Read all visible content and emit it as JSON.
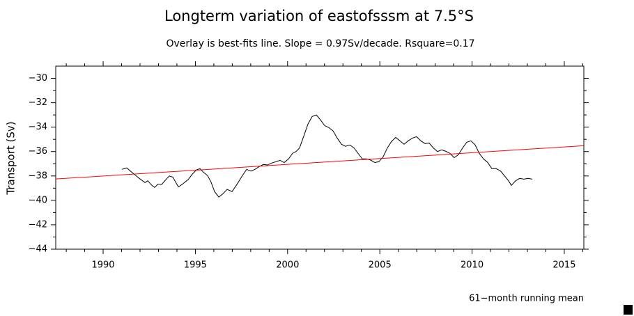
{
  "chart_data": {
    "type": "line",
    "title": "Longterm variation of eastofsssm at 7.5°S",
    "subtitle": "Overlay is best-fits line. Slope = 0.97Sv/decade. Rsquare=0.17",
    "y_label": "Transport (Sv)",
    "note": "61−month running mean",
    "xlim": [
      1987.43,
      2016.06
    ],
    "xticks": [
      1990,
      1995,
      2000,
      2005,
      2010,
      2015
    ],
    "ylim": [
      -44,
      -29
    ],
    "yticks": [
      {
        "value": -44,
        "label": "−44"
      },
      {
        "value": -42,
        "label": "−42"
      },
      {
        "value": -40,
        "label": "−40"
      },
      {
        "value": -38,
        "label": "−38"
      },
      {
        "value": -36,
        "label": "−36"
      },
      {
        "value": -34,
        "label": "−34"
      },
      {
        "value": -32,
        "label": "−32"
      },
      {
        "value": -30,
        "label": "−30"
      }
    ],
    "series": [
      {
        "color": "#000000",
        "x": [
          1991.02,
          1991.28,
          1991.59,
          1991.96,
          1992.27,
          1992.42,
          1992.64,
          1992.79,
          1992.98,
          1993.17,
          1993.4,
          1993.59,
          1993.78,
          1993.93,
          1994.08,
          1994.31,
          1994.61,
          1994.83,
          1995.06,
          1995.25,
          1995.44,
          1995.66,
          1995.85,
          1996.04,
          1996.27,
          1996.5,
          1996.72,
          1996.99,
          1997.25,
          1997.55,
          1997.78,
          1998.01,
          1998.23,
          1998.46,
          1998.69,
          1998.91,
          1999.14,
          1999.37,
          1999.59,
          1999.82,
          2000.05,
          2000.27,
          2000.46,
          2000.65,
          2000.88,
          2001.1,
          2001.33,
          2001.56,
          2001.78,
          2002.01,
          2002.24,
          2002.46,
          2002.69,
          2002.92,
          2003.14,
          2003.37,
          2003.6,
          2003.82,
          2004.05,
          2004.28,
          2004.5,
          2004.73,
          2004.95,
          2005.18,
          2005.41,
          2005.63,
          2005.86,
          2006.09,
          2006.31,
          2006.54,
          2006.77,
          2006.99,
          2007.22,
          2007.45,
          2007.67,
          2007.9,
          2008.13,
          2008.35,
          2008.58,
          2008.81,
          2009.03,
          2009.26,
          2009.49,
          2009.71,
          2009.94,
          2010.17,
          2010.39,
          2010.62,
          2010.85,
          2011.07,
          2011.3,
          2011.53,
          2011.75,
          2011.98,
          2012.13,
          2012.36,
          2012.58,
          2012.81,
          2013.04,
          2013.26
        ],
        "values": [
          -37.46,
          -37.34,
          -37.74,
          -38.2,
          -38.54,
          -38.4,
          -38.77,
          -38.94,
          -38.66,
          -38.7,
          -38.3,
          -38.0,
          -38.1,
          -38.5,
          -38.9,
          -38.66,
          -38.3,
          -37.86,
          -37.5,
          -37.4,
          -37.7,
          -37.97,
          -38.5,
          -39.28,
          -39.73,
          -39.45,
          -39.1,
          -39.28,
          -38.7,
          -37.97,
          -37.46,
          -37.6,
          -37.46,
          -37.23,
          -37.06,
          -37.1,
          -36.94,
          -36.83,
          -36.72,
          -36.9,
          -36.6,
          -36.15,
          -36.0,
          -35.7,
          -34.72,
          -33.76,
          -33.13,
          -33.0,
          -33.4,
          -33.87,
          -34.04,
          -34.3,
          -34.9,
          -35.4,
          -35.57,
          -35.46,
          -35.7,
          -36.15,
          -36.6,
          -36.6,
          -36.7,
          -36.9,
          -36.83,
          -36.43,
          -35.7,
          -35.18,
          -34.84,
          -35.12,
          -35.4,
          -35.12,
          -34.9,
          -34.78,
          -35.12,
          -35.35,
          -35.3,
          -35.7,
          -36.0,
          -35.86,
          -35.98,
          -36.15,
          -36.5,
          -36.26,
          -35.7,
          -35.24,
          -35.12,
          -35.46,
          -36.15,
          -36.6,
          -36.9,
          -37.4,
          -37.4,
          -37.57,
          -37.97,
          -38.4,
          -38.77,
          -38.4,
          -38.2,
          -38.26,
          -38.2,
          -38.26
        ]
      },
      {
        "color": "#ff0000",
        "x": [
          1987.43,
          2016.06
        ],
        "values": [
          -38.25,
          -35.52
        ]
      }
    ]
  }
}
